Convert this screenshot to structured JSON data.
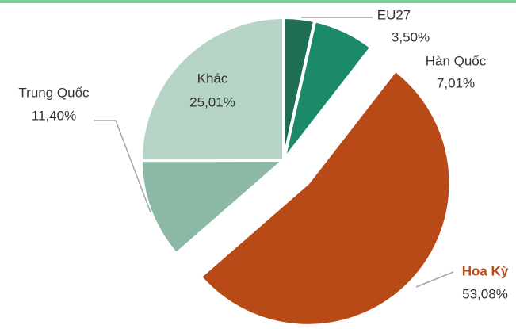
{
  "chart_data": {
    "type": "pie",
    "categories": [
      "EU27",
      "Hàn Quốc",
      "Hoa Kỳ",
      "Trung Quốc",
      "Khác"
    ],
    "values": [
      3.5,
      7.01,
      53.08,
      11.4,
      25.01
    ],
    "value_labels": [
      "3,50%",
      "7,01%",
      "53,08%",
      "11,40%",
      "25,01%"
    ],
    "colors": [
      "#1e6e55",
      "#1b8a69",
      "#b84a18",
      "#8bb9a5",
      "#b6d4c6"
    ]
  }
}
